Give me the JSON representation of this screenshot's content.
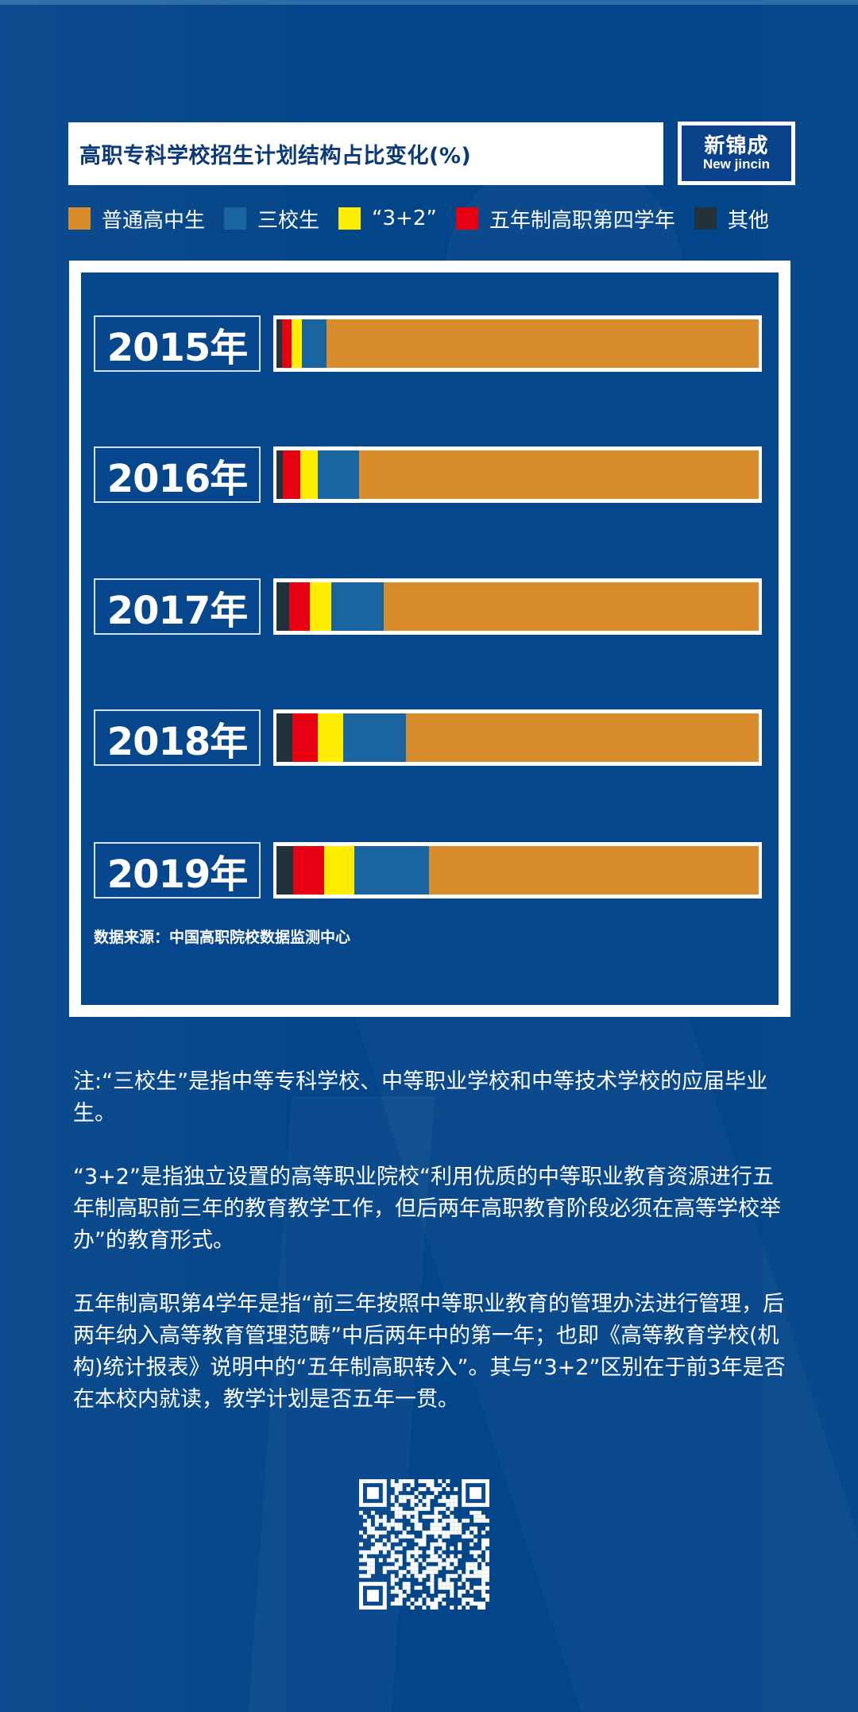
{
  "header": {
    "title": "高职专科学校招生计划结构占比变化(%)",
    "logo_cn": "新锦成",
    "logo_en": "New jincin"
  },
  "legend": [
    {
      "label": "普通高中生",
      "color": "#d98c2b"
    },
    {
      "label": "三校生",
      "color": "#1a64a0"
    },
    {
      "label": "“3+2”",
      "color": "#ffee00"
    },
    {
      "label": "五年制高职第四学年",
      "color": "#e60012"
    },
    {
      "label": "其他",
      "color": "#22323b"
    }
  ],
  "rows": [
    {
      "year": "2015年"
    },
    {
      "year": "2016年"
    },
    {
      "year": "2017年"
    },
    {
      "year": "2018年"
    },
    {
      "year": "2019年"
    }
  ],
  "source": "数据来源：中国高职院校数据监测中心",
  "notes": [
    "注:“三校生”是指中等专科学校、中等职业学校和中等技术学校的应届毕业生。",
    "“3+2”是指独立设置的高等职业院校“利用优质的中等职业教育资源进行五年制高职前三年的教育教学工作，但后两年高职教育阶段必须在高等学校举办”的教育形式。",
    "五年制高职第4学年是指“前三年按照中等职业教育的管理办法进行管理，后两年纳入高等教育管理范畴”中后两年中的第一年；也即《高等教育学校(机构)统计报表》说明中的“五年制高职转入”。其与“3+2”区别在于前3年是否在本校内就读，教学计划是否五年一贯。"
  ],
  "colors": {
    "background": "#034589",
    "panel": "#05468d",
    "title_text": "#0c3a78"
  },
  "chart_data": {
    "type": "bar",
    "orientation": "horizontal",
    "stacked": true,
    "percent_stacked": true,
    "title": "高职专科学校招生计划结构占比变化(%)",
    "xlabel": "",
    "ylabel": "",
    "xlim": [
      0,
      100
    ],
    "grid": false,
    "legend_position": "top",
    "categories": [
      "2015年",
      "2016年",
      "2017年",
      "2018年",
      "2019年"
    ],
    "series": [
      {
        "name": "其他",
        "color": "#22323b",
        "values": [
          1.2,
          1.3,
          2.6,
          3.3,
          3.5
        ]
      },
      {
        "name": "五年制高职第四学年",
        "color": "#e60012",
        "values": [
          2.0,
          3.6,
          4.4,
          5.3,
          6.4
        ]
      },
      {
        "name": "“3+2”",
        "color": "#ffee00",
        "values": [
          2.1,
          3.6,
          4.3,
          5.3,
          6.3
        ]
      },
      {
        "name": "三校生",
        "color": "#1a64a0",
        "values": [
          5.1,
          8.7,
          11.0,
          12.9,
          15.5
        ]
      },
      {
        "name": "普通高中生",
        "color": "#d98c2b",
        "values": [
          89.6,
          82.8,
          77.7,
          73.2,
          68.3
        ]
      }
    ],
    "source": "数据来源：中国高职院校数据监测中心"
  }
}
